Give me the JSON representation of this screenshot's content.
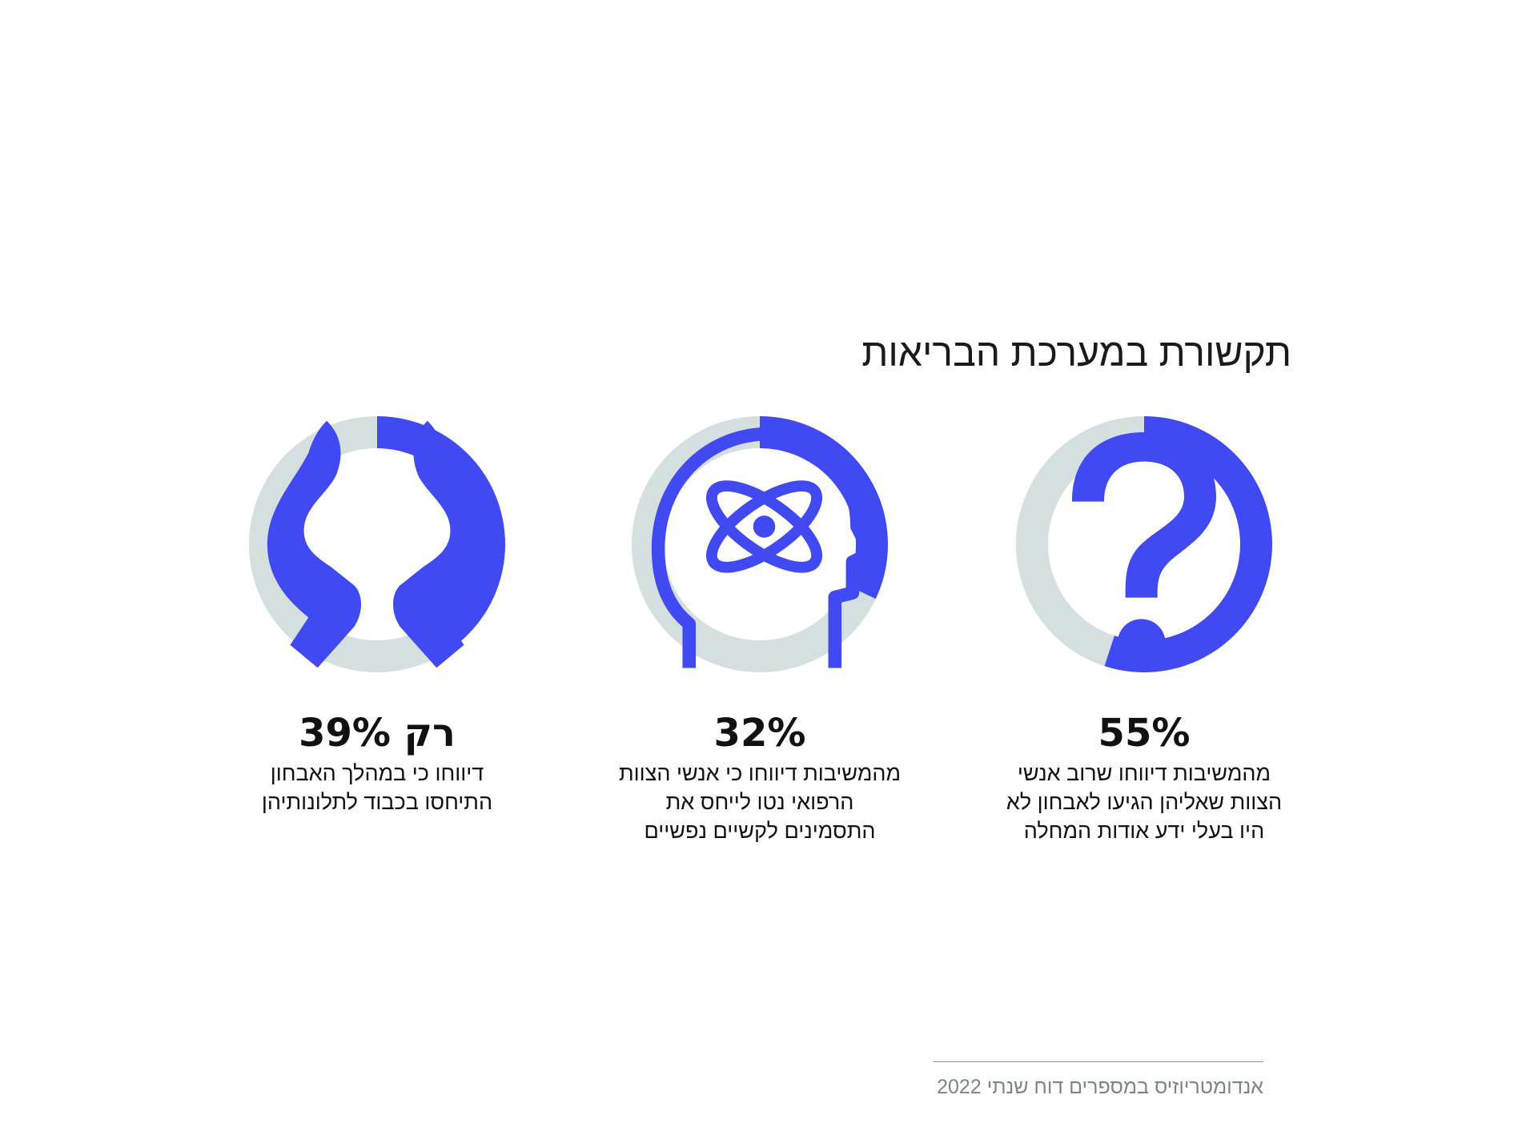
{
  "title": "תקשורת במערכת הבריאות",
  "colors": {
    "accent": "#4049f2",
    "track": "#d5dfdf",
    "text": "#111111",
    "source_text": "#7b868a"
  },
  "chart_data": [
    {
      "type": "pie",
      "value": 55,
      "label": "55%",
      "icon": "question-mark-icon",
      "description": [
        "מהמשיבות דיווחו שרוב אנשי",
        "הצוות שאליהן הגיעו לאבחון לא",
        "היו בעלי ידע אודות המחלה"
      ]
    },
    {
      "type": "pie",
      "value": 32,
      "label": "32%",
      "icon": "head-atom-icon",
      "description": [
        "מהמשיבות דיווחו כי אנשי הצוות",
        "הרפואי נטו לייחס את",
        "התסמינים לקשיים נפשיים"
      ]
    },
    {
      "type": "pie",
      "value": 39,
      "label": "רק 39%",
      "icon": "caring-hands-icon",
      "description": [
        "דיווחו כי במהלך האבחון",
        "התיחסו בכבוד לתלונותיהן"
      ]
    }
  ],
  "source": "אנדומטריוזיס במספרים דוח שנתי 2022"
}
